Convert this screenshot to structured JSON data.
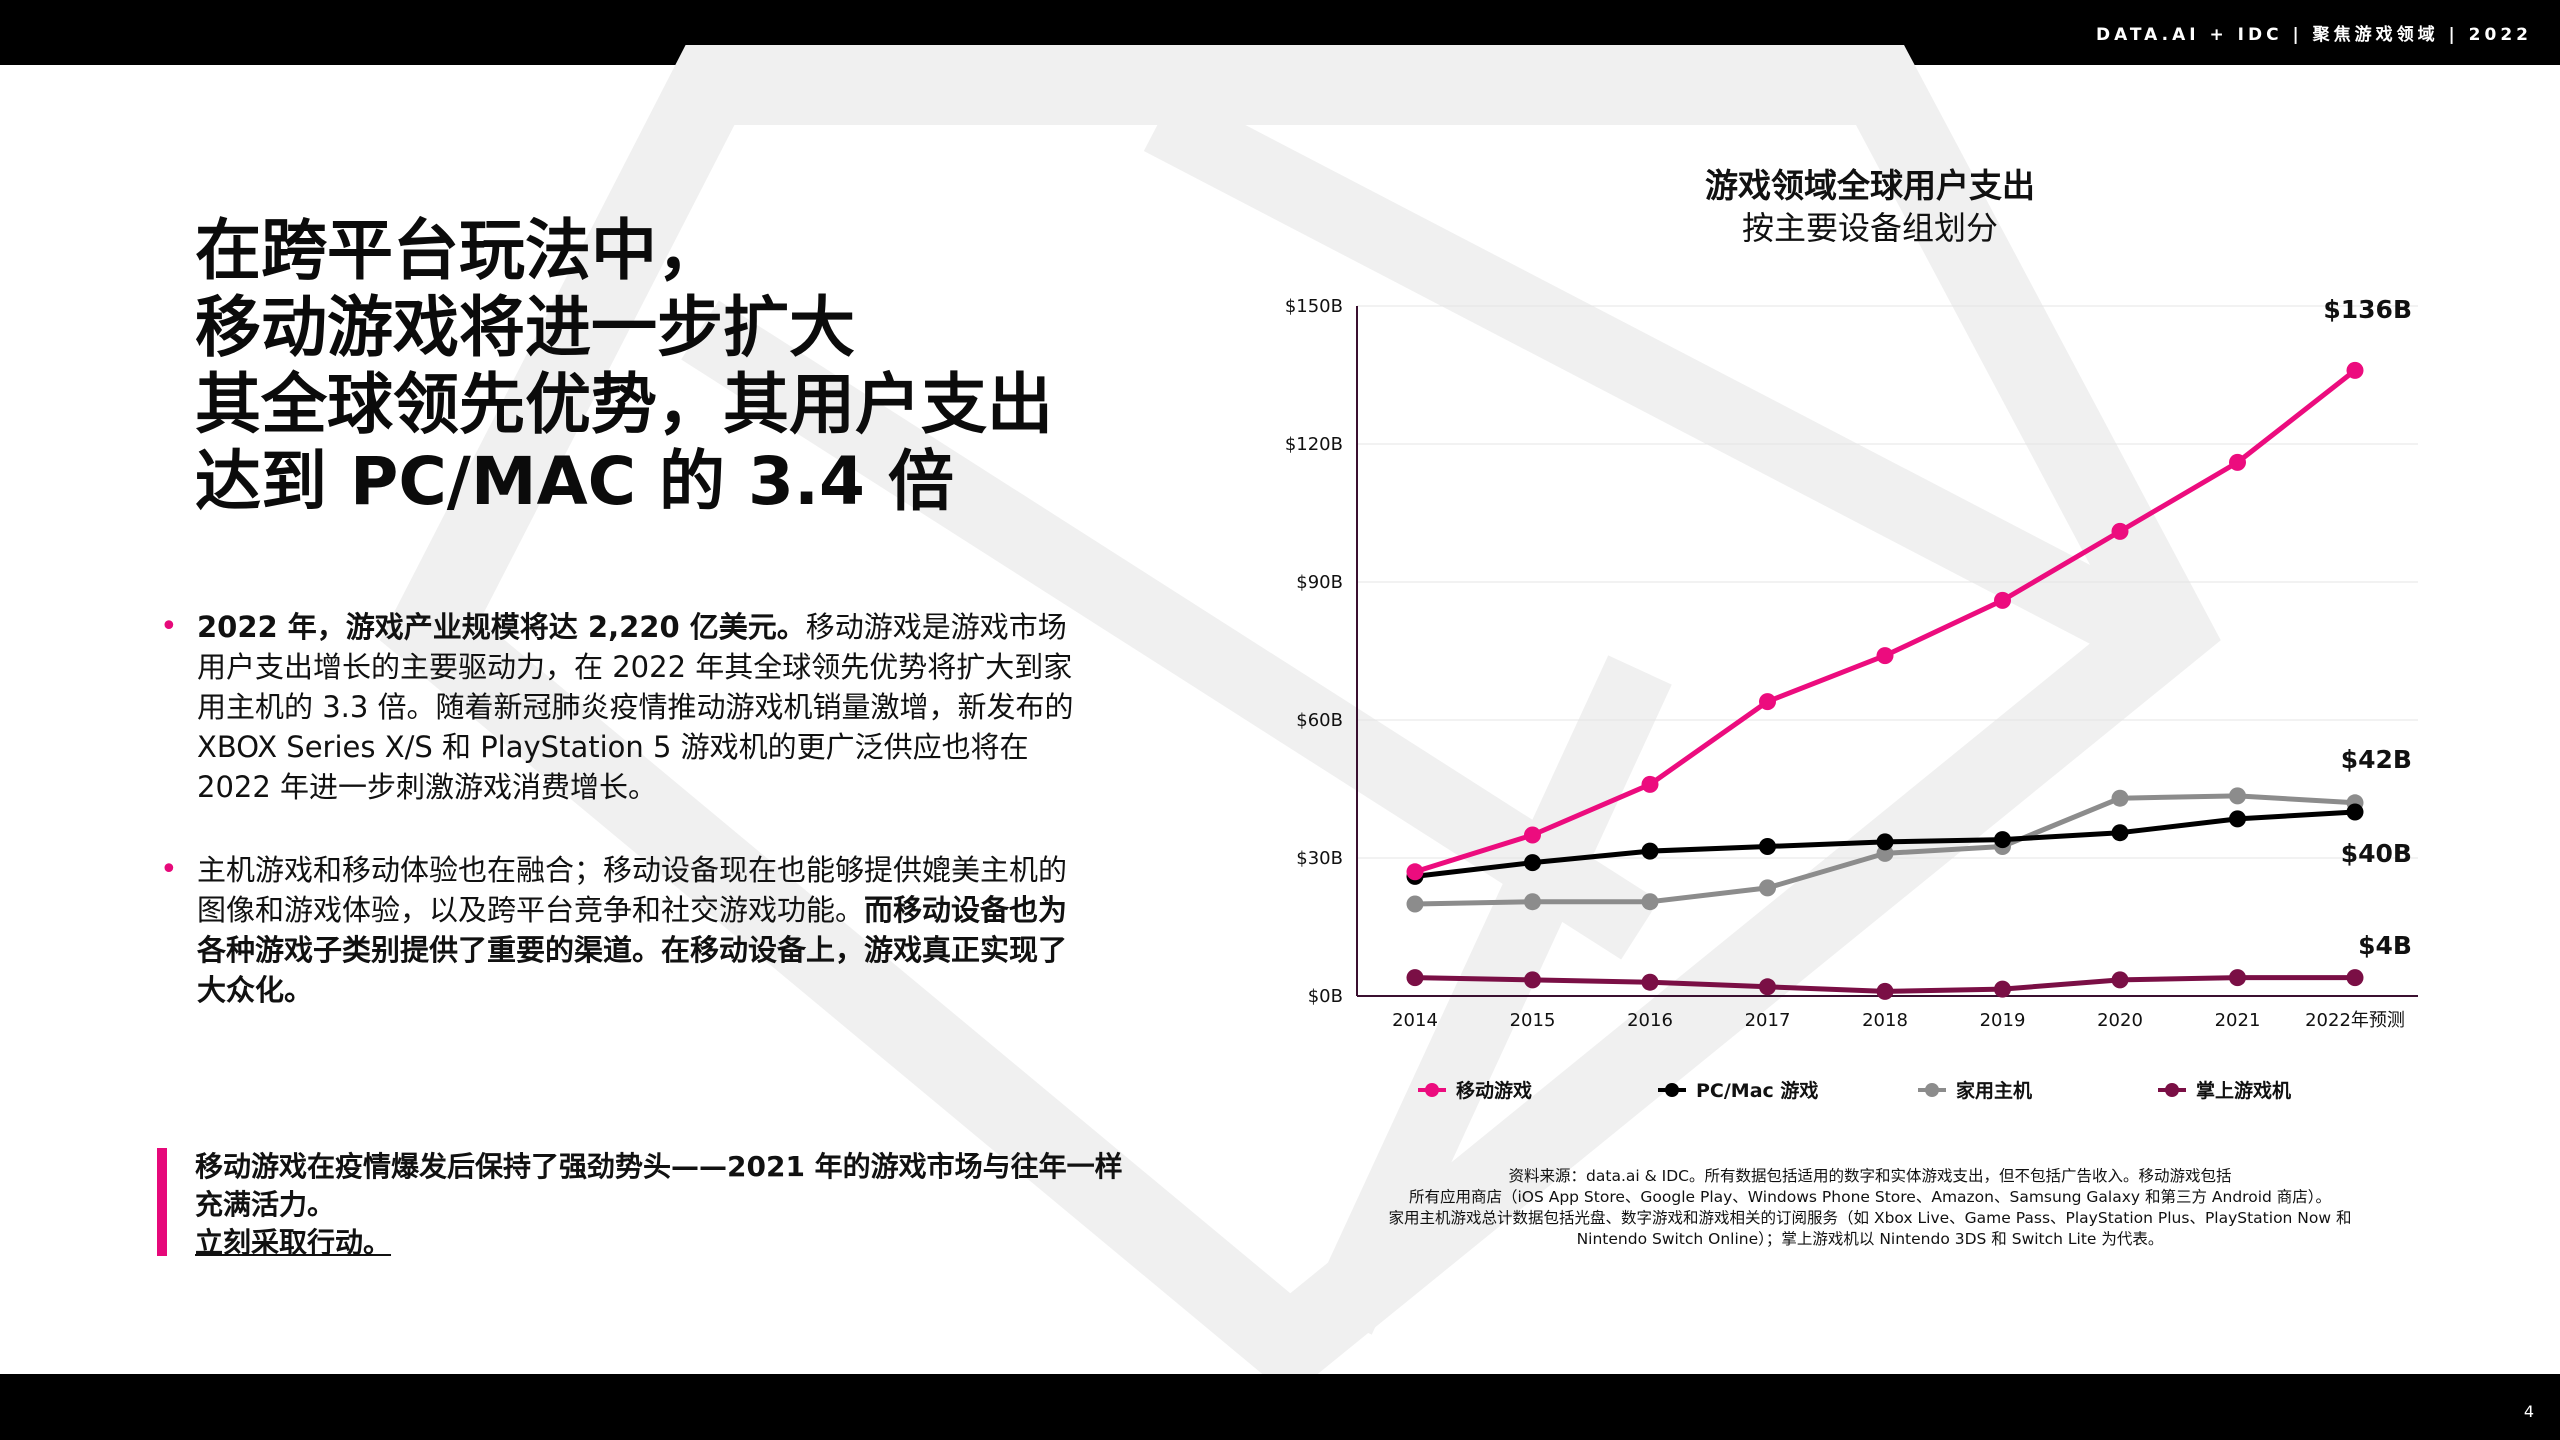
{
  "header": {
    "text": "DATA.AI + IDC  |  聚焦游戏领域  | 2022"
  },
  "page_number": "4",
  "headline": [
    "在跨平台玩法中，",
    "移动游戏将进一步扩大",
    "其全球领先优势，其用户支出",
    "达到 PC/MAC 的 3.4 倍"
  ],
  "bullets": [
    {
      "bold": "2022 年，游戏产业规模将达 2,220 亿美元。",
      "text": "移动游戏是游戏市场用户支出增长的主要驱动力，在 2022 年其全球领先优势将扩大到家用主机的 3.3 倍。随着新冠肺炎疫情推动游戏机销量激增，新发布的 XBOX Series X/S 和 PlayStation 5 游戏机的更广泛供应也将在 2022 年进一步刺激游戏消费增长。"
    },
    {
      "text": "主机游戏和移动体验也在融合；移动设备现在也能够提供媲美主机的图像和游戏体验，以及跨平台竞争和社交游戏功能。",
      "bold": "而移动设备也为各种游戏子类别提供了重要的渠道。在移动设备上，游戏真正实现了大众化。"
    }
  ],
  "callout": {
    "text": "移动游戏在疫情爆发后保持了强劲势头——2021 年的游戏市场与往年一样充满活力。",
    "link": "立刻采取行动。"
  },
  "source_lines": [
    "资料来源：data.ai & IDC。所有数据包括适用的数字和实体游戏支出，但不包括广告收入。移动游戏包括",
    "所有应用商店（iOS App Store、Google Play、Windows Phone Store、Amazon、Samsung Galaxy 和第三方 Android 商店）。",
    "家用主机游戏总计数据包括光盘、数字游戏和游戏相关的订阅服务（如 Xbox Live、Game Pass、PlayStation Plus、PlayStation Now 和",
    "Nintendo Switch Online）；掌上游戏机以 Nintendo 3DS 和 Switch Lite 为代表。"
  ],
  "colors": {
    "accent": "#e6097a",
    "mobile": "#ec0c7e",
    "pc": "#000000",
    "console": "#8c8c8c",
    "handheld": "#7a0f45"
  },
  "chart_data": {
    "type": "line",
    "title": "游戏领域全球用户支出",
    "subtitle": "按主要设备组划分",
    "categories": [
      "2014",
      "2015",
      "2016",
      "2017",
      "2018",
      "2019",
      "2020",
      "2021",
      "2022年预测"
    ],
    "y_ticks": [
      "$0B",
      "$30B",
      "$60B",
      "$90B",
      "$120B",
      "$150B"
    ],
    "ylim": [
      0,
      150
    ],
    "unit": "B USD",
    "grid": true,
    "legend_position": "bottom",
    "series": [
      {
        "name": "移动游戏",
        "values": [
          27,
          35,
          46,
          64,
          74,
          86,
          101,
          116,
          136
        ],
        "end_label": "$136B"
      },
      {
        "name": "PC/Mac 游戏",
        "values": [
          26,
          29,
          31.5,
          32.5,
          33.5,
          34,
          35.5,
          38.5,
          40
        ],
        "end_label": "$40B"
      },
      {
        "name": "家用主机",
        "values": [
          20,
          20.5,
          20.5,
          23.5,
          31,
          32.5,
          43,
          43.5,
          42
        ],
        "end_label": "$42B"
      },
      {
        "name": "掌上游戏机",
        "values": [
          4,
          3.5,
          3,
          2,
          1,
          1.5,
          3.5,
          4,
          4
        ],
        "end_label": "$4B"
      }
    ]
  }
}
